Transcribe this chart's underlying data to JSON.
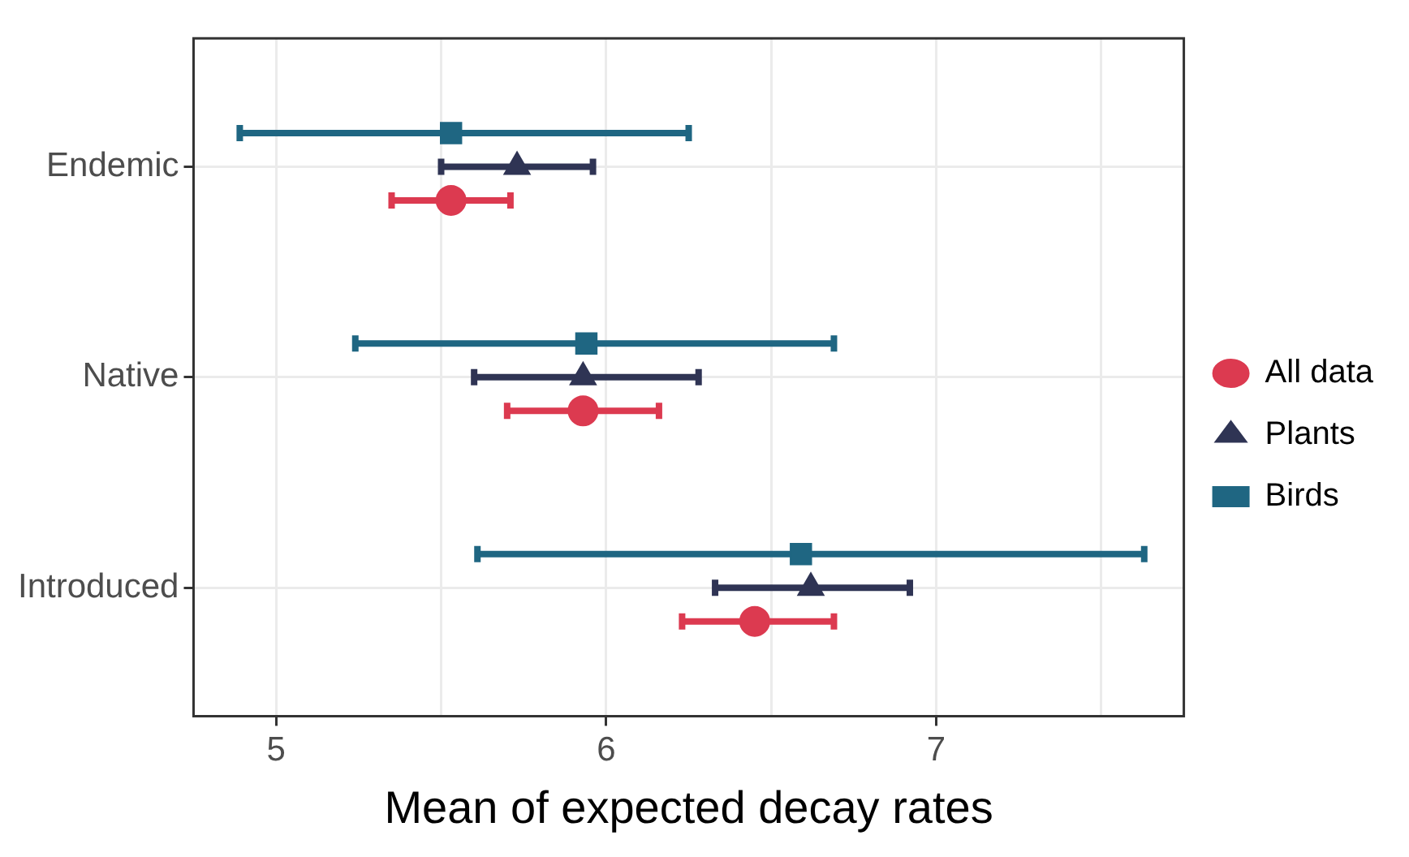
{
  "chart_data": {
    "type": "scatter",
    "orientation": "horizontal",
    "xlabel": "Mean of expected decay rates",
    "categories": [
      "Endemic",
      "Native",
      "Introduced"
    ],
    "series": [
      {
        "name": "All data",
        "color": "#dc3a50",
        "marker": "circle",
        "values": [
          5.53,
          5.93,
          6.45
        ],
        "errors": [
          [
            5.35,
            5.71
          ],
          [
            5.7,
            6.16
          ],
          [
            6.23,
            6.69
          ]
        ]
      },
      {
        "name": "Plants",
        "color": "#2f3454",
        "marker": "triangle",
        "values": [
          5.73,
          5.93,
          6.62
        ],
        "errors": [
          [
            5.5,
            5.96
          ],
          [
            5.6,
            6.28
          ],
          [
            6.33,
            6.92
          ]
        ]
      },
      {
        "name": "Birds",
        "color": "#1f6682",
        "marker": "square",
        "values": [
          5.53,
          5.94,
          6.59
        ],
        "errors": [
          [
            4.89,
            6.25
          ],
          [
            5.24,
            6.69
          ],
          [
            5.61,
            7.63
          ]
        ]
      }
    ],
    "xlim": [
      4.75,
      7.75
    ],
    "xticks": [
      5,
      {
        "value": 5.5,
        "label": null
      },
      6,
      {
        "value": 6.5,
        "label": null
      },
      7,
      {
        "value": 7.5,
        "label": null
      }
    ],
    "grid": true,
    "legend": "right",
    "line_style": "solid"
  }
}
